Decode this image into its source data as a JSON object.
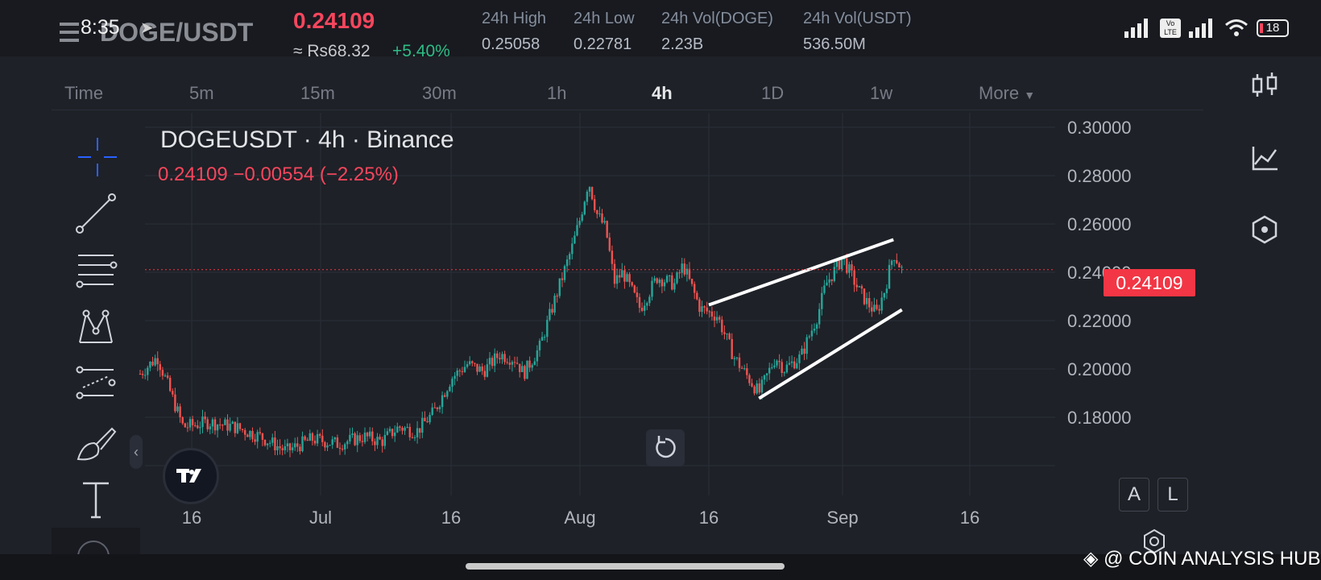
{
  "status_bar": {
    "time": "8:35",
    "arrow": "➤",
    "volte": "Vo LTE",
    "battery": "18"
  },
  "header": {
    "pair": "DOGE/USDT",
    "last_price": "0.24109",
    "fiat_price": "≈ Rs68.32",
    "change": "+5.40%",
    "stats": [
      {
        "label": "24h High",
        "value": "0.25058"
      },
      {
        "label": "24h Low",
        "value": "0.22781"
      },
      {
        "label": "24h Vol(DOGE)",
        "value": "2.23B"
      },
      {
        "label": "24h Vol(USDT)",
        "value": "536.50M"
      }
    ]
  },
  "intervals": [
    "Time",
    "5m",
    "15m",
    "30m",
    "1h",
    "4h",
    "1D",
    "1w",
    "More"
  ],
  "active_interval": "4h",
  "chart": {
    "symbol_line": "DOGEUSDT · 4h · Binance",
    "ohlc_line": "0.24109  −0.00554 (−2.25%)",
    "current_price_label": "0.24109",
    "scale_buttons": [
      "A",
      "L"
    ]
  },
  "chart_data": {
    "type": "candlestick",
    "symbol": "DOGEUSDT",
    "interval": "4h",
    "exchange": "Binance",
    "y_ticks": [
      "0.30000",
      "0.28000",
      "0.26000",
      "0.24000",
      "0.22000",
      "0.20000",
      "0.18000"
    ],
    "x_ticks": [
      "16",
      "Jul",
      "16",
      "Aug",
      "16",
      "Sep",
      "16"
    ],
    "ylim": [
      0.16,
      0.305
    ],
    "last_price": 0.24109,
    "price_path": [
      {
        "date": "2024-06-10",
        "price": 0.198
      },
      {
        "date": "2024-06-12",
        "price": 0.205
      },
      {
        "date": "2024-06-15",
        "price": 0.176
      },
      {
        "date": "2024-06-18",
        "price": 0.178
      },
      {
        "date": "2024-06-21",
        "price": 0.176
      },
      {
        "date": "2024-06-24",
        "price": 0.172
      },
      {
        "date": "2024-06-27",
        "price": 0.166
      },
      {
        "date": "2024-06-30",
        "price": 0.171
      },
      {
        "date": "2024-07-03",
        "price": 0.169
      },
      {
        "date": "2024-07-06",
        "price": 0.172
      },
      {
        "date": "2024-07-08",
        "price": 0.17
      },
      {
        "date": "2024-07-10",
        "price": 0.176
      },
      {
        "date": "2024-07-12",
        "price": 0.174
      },
      {
        "date": "2024-07-14",
        "price": 0.182
      },
      {
        "date": "2024-07-16",
        "price": 0.196
      },
      {
        "date": "2024-07-18",
        "price": 0.202
      },
      {
        "date": "2024-07-20",
        "price": 0.199
      },
      {
        "date": "2024-07-22",
        "price": 0.206
      },
      {
        "date": "2024-07-24",
        "price": 0.204
      },
      {
        "date": "2024-07-25",
        "price": 0.198
      },
      {
        "date": "2024-07-27",
        "price": 0.209
      },
      {
        "date": "2024-07-29",
        "price": 0.23
      },
      {
        "date": "2024-07-31",
        "price": 0.25
      },
      {
        "date": "2024-08-01",
        "price": 0.262
      },
      {
        "date": "2024-08-02",
        "price": 0.278
      },
      {
        "date": "2024-08-03",
        "price": 0.264
      },
      {
        "date": "2024-08-04",
        "price": 0.258
      },
      {
        "date": "2024-08-05",
        "price": 0.236
      },
      {
        "date": "2024-08-06",
        "price": 0.24
      },
      {
        "date": "2024-08-08",
        "price": 0.225
      },
      {
        "date": "2024-08-10",
        "price": 0.238
      },
      {
        "date": "2024-08-12",
        "price": 0.235
      },
      {
        "date": "2024-08-13",
        "price": 0.243
      },
      {
        "date": "2024-08-15",
        "price": 0.225
      },
      {
        "date": "2024-08-17",
        "price": 0.222
      },
      {
        "date": "2024-08-19",
        "price": 0.205
      },
      {
        "date": "2024-08-21",
        "price": 0.195
      },
      {
        "date": "2024-08-22",
        "price": 0.19
      },
      {
        "date": "2024-08-24",
        "price": 0.205
      },
      {
        "date": "2024-08-25",
        "price": 0.2
      },
      {
        "date": "2024-08-27",
        "price": 0.205
      },
      {
        "date": "2024-08-29",
        "price": 0.222
      },
      {
        "date": "2024-08-30",
        "price": 0.235
      },
      {
        "date": "2024-09-01",
        "price": 0.246
      },
      {
        "date": "2024-09-03",
        "price": 0.232
      },
      {
        "date": "2024-09-04",
        "price": 0.227
      },
      {
        "date": "2024-09-05",
        "price": 0.223
      },
      {
        "date": "2024-09-06",
        "price": 0.233
      },
      {
        "date": "2024-09-07",
        "price": 0.248
      },
      {
        "date": "2024-09-08",
        "price": 0.241
      }
    ],
    "trendlines": [
      {
        "start": {
          "date": "2024-08-16",
          "price": 0.2265
        },
        "end": {
          "date": "2024-09-07",
          "price": 0.2535
        }
      },
      {
        "start": {
          "date": "2024-08-22",
          "price": 0.1878
        },
        "end": {
          "date": "2024-09-08",
          "price": 0.2245
        }
      }
    ],
    "legend": "none",
    "grid": true
  },
  "drawing_tools": [
    "crosshair-icon",
    "trendline-icon",
    "fib-retracement-icon",
    "pattern-icon",
    "prediction-icon",
    "brush-icon",
    "text-icon",
    "more-icon"
  ],
  "right_tools": [
    "candles-icon",
    "indicators-icon",
    "templates-icon"
  ],
  "watermark": "@ COIN ANALYSIS HUB",
  "colors": {
    "up": "#26a69a",
    "down": "#ef5350",
    "price_label": "#f23645",
    "background": "#1e2127",
    "trendline": "#ffffff",
    "change_positive": "#2ebd85"
  }
}
